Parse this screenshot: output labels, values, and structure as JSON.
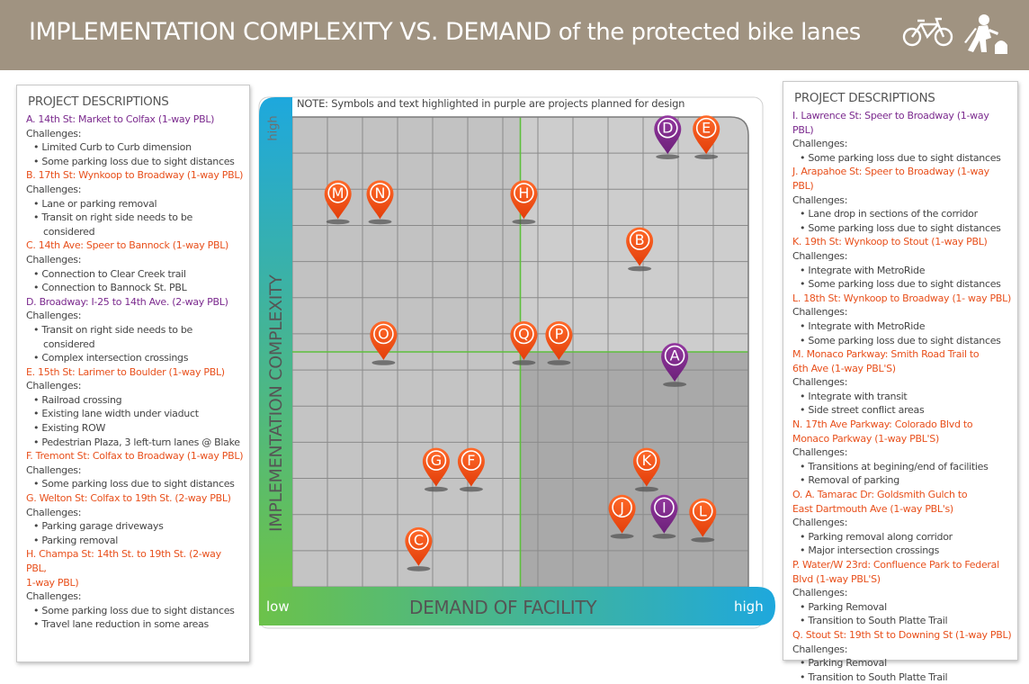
{
  "header": {
    "title_main": "IMPLEMENTATION COMPLEXITY VS. DEMAND",
    "title_sub": "of the protected bike lanes",
    "icons": [
      "bicycle-icon",
      "construction-worker-icon"
    ],
    "bg_color": "#a09381"
  },
  "left_panel": {
    "title": "PROJECT DESCRIPTIONS",
    "projects": [
      {
        "title": "A. 14th St: Market to Colfax (1-way PBL)",
        "status": "planned-for-design",
        "challenges_label": "Challenges:",
        "items": [
          "Limited Curb to Curb dimension",
          "Some parking loss due to sight distances"
        ]
      },
      {
        "title": "B. 17th St: Wynkoop to Broadway (1-way PBL)",
        "status": "other",
        "challenges_label": "Challenges:",
        "items": [
          "Lane or parking removal",
          "Transit on right side needs to be",
          "considered"
        ]
      },
      {
        "title": "C. 14th Ave: Speer to Bannock (1-way PBL)",
        "status": "other",
        "challenges_label": "Challenges:",
        "items": [
          "Connection to Clear Creek trail",
          "Connection to Bannock St. PBL"
        ]
      },
      {
        "title": "D. Broadway: I-25 to 14th Ave. (2-way PBL)",
        "status": "planned-for-design",
        "challenges_label": "Challenges:",
        "items": [
          "Transit on right side needs to be",
          "considered",
          "Complex intersection crossings"
        ]
      },
      {
        "title": "E. 15th St: Larimer to Boulder (1-way PBL)",
        "status": "other",
        "challenges_label": "Challenges:",
        "items": [
          "Railroad crossing",
          "Existing lane width under viaduct",
          "Existing ROW",
          "Pedestrian Plaza, 3 left-turn lanes @ Blake"
        ]
      },
      {
        "title": "F. Tremont St: Colfax to Broadway (1-way PBL)",
        "status": "other",
        "challenges_label": " Challenges:",
        "items": [
          "Some parking loss due to sight distances"
        ]
      },
      {
        "title": "G. Welton St: Colfax to 19th St. (2-way PBL)",
        "status": "other",
        "challenges_label": "Challenges:",
        "items": [
          "Parking garage driveways",
          "Parking removal"
        ]
      },
      {
        "title": "H. Champa St: 14th St. to 19th St. (2-way PBL,",
        "title_cont": "1-way PBL)",
        "status": "other",
        "challenges_label": "Challenges:",
        "items": [
          "Some parking loss due to sight distances",
          "Travel lane reduction in some areas"
        ]
      }
    ]
  },
  "right_panel": {
    "title": "PROJECT DESCRIPTIONS",
    "projects": [
      {
        "title": "I. Lawrence St: Speer to Broadway (1-way PBL)",
        "status": "planned-for-design",
        "challenges_label": "Challenges:",
        "items": [
          "Some parking loss due to sight distances"
        ]
      },
      {
        "title": "J. Arapahoe St: Speer to Broadway (1-way PBL)",
        "status": "other",
        "challenges_label": "Challenges:",
        "items": [
          "Lane drop in sections of the corridor",
          "Some parking loss due to sight distances"
        ]
      },
      {
        "title": "K. 19th St: Wynkoop to Stout (1-way PBL)",
        "status": "other",
        "challenges_label": "Challenges:",
        "items": [
          "Integrate with MetroRide",
          "Some parking loss due to sight distances"
        ]
      },
      {
        "title": "L. 18th St: Wynkoop to Broadway (1- way PBL)",
        "status": "other",
        "challenges_label": "Challenges:",
        "items": [
          "Integrate with MetroRide",
          "Some parking loss due to sight distances"
        ]
      },
      {
        "title": "M. Monaco Parkway:  Smith Road Trail to",
        "title_cont": "6th Ave (1-way PBL'S)",
        "status": "other",
        "challenges_label": "Challenges:",
        "items": [
          "Integrate with transit",
          "Side street conflict areas"
        ]
      },
      {
        "title": "N. 17th Ave Parkway:  Colorado Blvd to",
        "title_cont": "Monaco Parkway (1-way PBL'S)",
        "status": "other",
        "challenges_label": "Challenges:",
        "items": [
          "Transitions at begining/end of facilities",
          "Removal of parking"
        ]
      },
      {
        "title": "O.  A. Tamarac Dr: Goldsmith Gulch to",
        "title_cont": "East Dartmouth Ave (1-way PBL's)",
        "status": "other",
        "challenges_label": "Challenges:",
        "items": [
          "Parking removal along corridor",
          "Major intersection crossings"
        ]
      },
      {
        "title": "P. Water/W 23rd: Confluence Park to Federal",
        "title_cont": "Blvd (1-way PBL'S)",
        "status": "other",
        "challenges_label": "Challenges:",
        "items": [
          "Parking Removal",
          "Transition to South Platte Trail"
        ]
      },
      {
        "title": "Q. Stout St:  19th St to Downing St (1-way PBL)",
        "status": "other",
        "challenges_label": "Challenges:",
        "items": [
          "Parking Removal",
          "Transition to South Platte Trail"
        ]
      }
    ]
  },
  "chart_data": {
    "type": "scatter",
    "title": "IMPLEMENTATION COMPLEXITY VS. DEMAND of the protected bike lanes",
    "note": "NOTE:  Symbols and text highlighted in purple are projects planned for design",
    "xlabel": "DEMAND OF FACILITY",
    "ylabel": "IMPLEMENTATION COMPLEXITY",
    "x_low_label": "low",
    "x_high_label": "high",
    "y_high_label": "high",
    "xlim": [
      0,
      13
    ],
    "ylim": [
      0,
      13
    ],
    "quadrant_split": {
      "x": 6.5,
      "y": 6.5
    },
    "grid": true,
    "colors": {
      "planned": "#7b2a8e",
      "other": "#f04e12",
      "quadrant_line": "#5dbf3c",
      "y_axis_top": "#1ea8dd",
      "y_axis_bottom": "#6cc24a"
    },
    "points": [
      {
        "label": "A",
        "x": 10.9,
        "y": 5.6,
        "status": "planned-for-design"
      },
      {
        "label": "B",
        "x": 9.9,
        "y": 8.8,
        "status": "other"
      },
      {
        "label": "C",
        "x": 3.6,
        "y": 0.5,
        "status": "other"
      },
      {
        "label": "D",
        "x": 10.7,
        "y": 11.9,
        "status": "planned-for-design"
      },
      {
        "label": "E",
        "x": 11.8,
        "y": 11.9,
        "status": "other"
      },
      {
        "label": "F",
        "x": 5.1,
        "y": 2.7,
        "status": "other"
      },
      {
        "label": "G",
        "x": 4.1,
        "y": 2.7,
        "status": "other"
      },
      {
        "label": "H",
        "x": 6.6,
        "y": 10.1,
        "status": "other"
      },
      {
        "label": "I",
        "x": 10.6,
        "y": 1.4,
        "status": "planned-for-design"
      },
      {
        "label": "J",
        "x": 9.4,
        "y": 1.4,
        "status": "other"
      },
      {
        "label": "K",
        "x": 10.1,
        "y": 2.7,
        "status": "other"
      },
      {
        "label": "L",
        "x": 11.7,
        "y": 1.3,
        "status": "other"
      },
      {
        "label": "M",
        "x": 1.3,
        "y": 10.1,
        "status": "other"
      },
      {
        "label": "N",
        "x": 2.5,
        "y": 10.1,
        "status": "other"
      },
      {
        "label": "O",
        "x": 2.6,
        "y": 6.2,
        "status": "other"
      },
      {
        "label": "P",
        "x": 7.6,
        "y": 6.2,
        "status": "other"
      },
      {
        "label": "Q",
        "x": 6.6,
        "y": 6.2,
        "status": "other"
      }
    ]
  }
}
